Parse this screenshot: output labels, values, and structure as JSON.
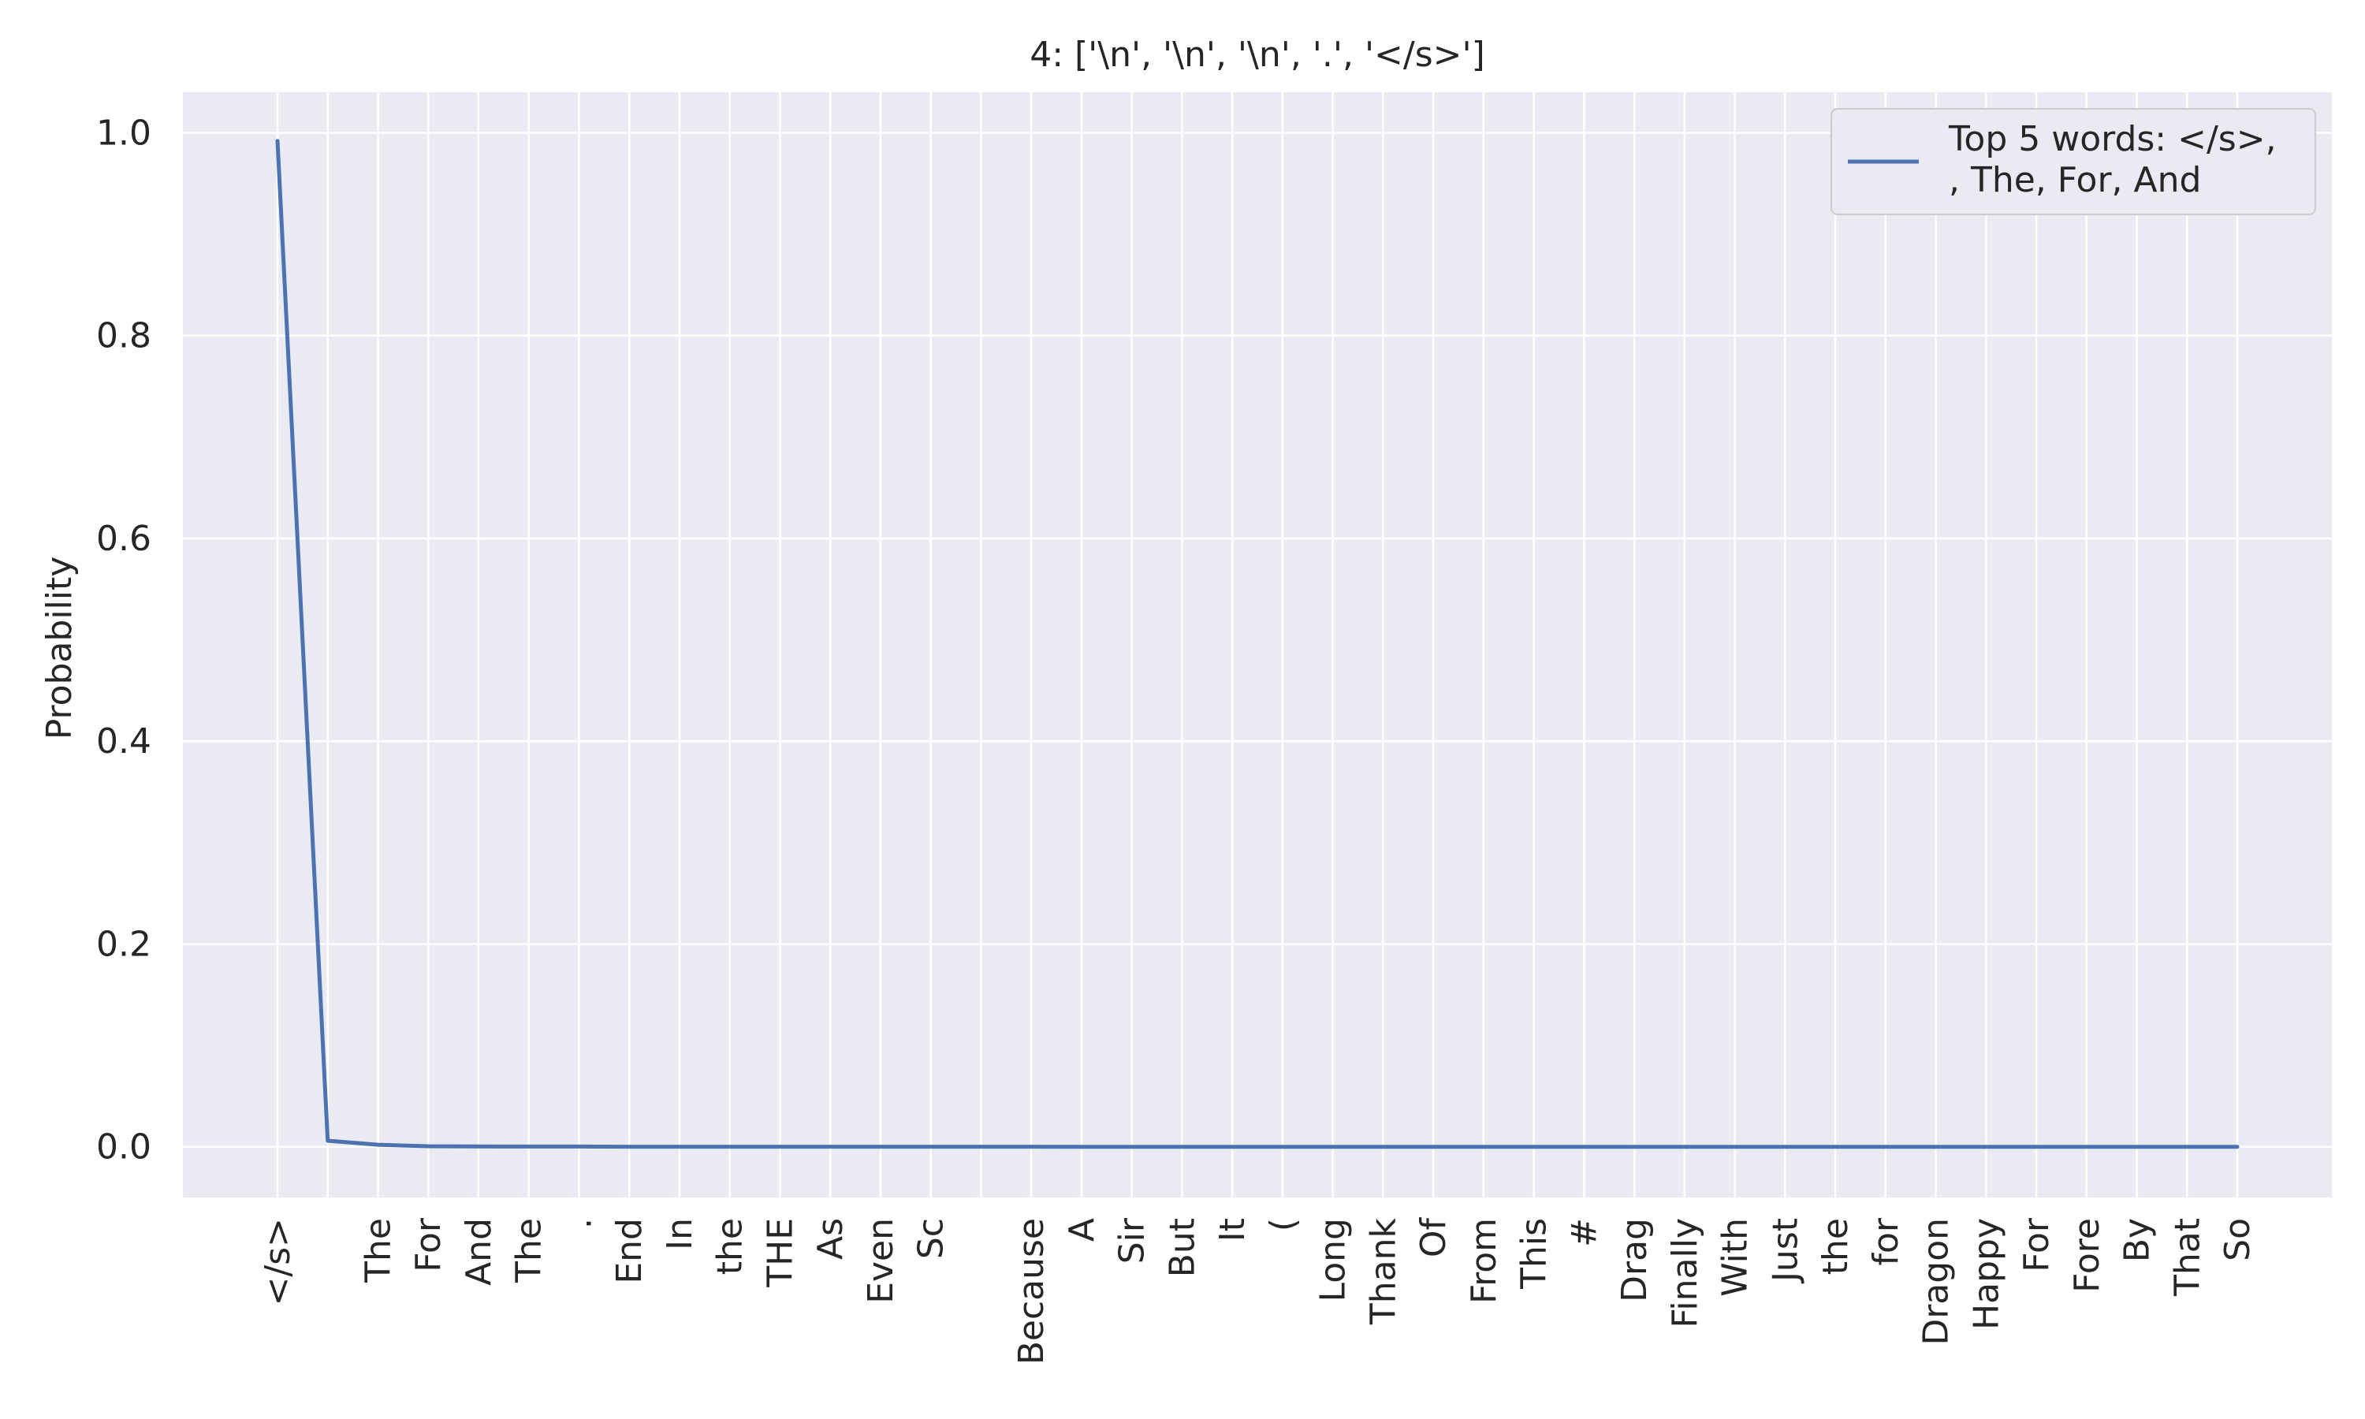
{
  "chart_data": {
    "type": "line",
    "title": "4: ['\\n', '\\n', '\\n', '.', '</s>']",
    "xlabel": "",
    "ylabel": "Probability",
    "ylim": [
      -0.05,
      1.04
    ],
    "yticks": [
      0.0,
      0.2,
      0.4,
      0.6,
      0.8,
      1.0
    ],
    "ytick_labels": [
      "0.0",
      "0.2",
      "0.4",
      "0.6",
      "0.8",
      "1.0"
    ],
    "grid": true,
    "legend_position": "top-right",
    "categories": [
      "</s>",
      "",
      "The",
      "For",
      "And",
      "The",
      ".",
      "End",
      "In",
      "the",
      "THE",
      "As",
      "Even",
      "Sc",
      "",
      "Because",
      "A",
      "Sir",
      "But",
      "It",
      "(",
      "Long",
      "Thank",
      "Of",
      "From",
      "This",
      "#",
      "Drag",
      "Finally",
      "With",
      "Just",
      "the",
      "for",
      "Dragon",
      "Happy",
      "For",
      "Fore",
      "By",
      "That",
      "So"
    ],
    "series": [
      {
        "name": "Top 5 words: </s>,\n, The, For, And",
        "color": "#4c72b0",
        "values": [
          0.992,
          0.006,
          0.002,
          0.0005,
          0.0003,
          0.0002,
          0.0002,
          0.0001,
          0.0001,
          0.0001,
          0.0001,
          0.0001,
          0.0001,
          0.0001,
          0.0001,
          0.0001,
          0.0,
          0.0,
          0.0,
          0.0,
          0.0,
          0.0,
          0.0,
          0.0,
          0.0,
          0.0,
          0.0,
          0.0,
          0.0,
          0.0,
          0.0,
          0.0,
          0.0,
          0.0,
          0.0,
          0.0,
          0.0,
          0.0,
          0.0,
          0.0
        ]
      }
    ],
    "legend_lines": [
      "Top 5 words: </s>,",
      ", The, For, And"
    ]
  },
  "colors": {
    "plot_background": "#eaeaf2",
    "grid": "#ffffff",
    "text": "#262626",
    "series": "#4c72b0"
  }
}
